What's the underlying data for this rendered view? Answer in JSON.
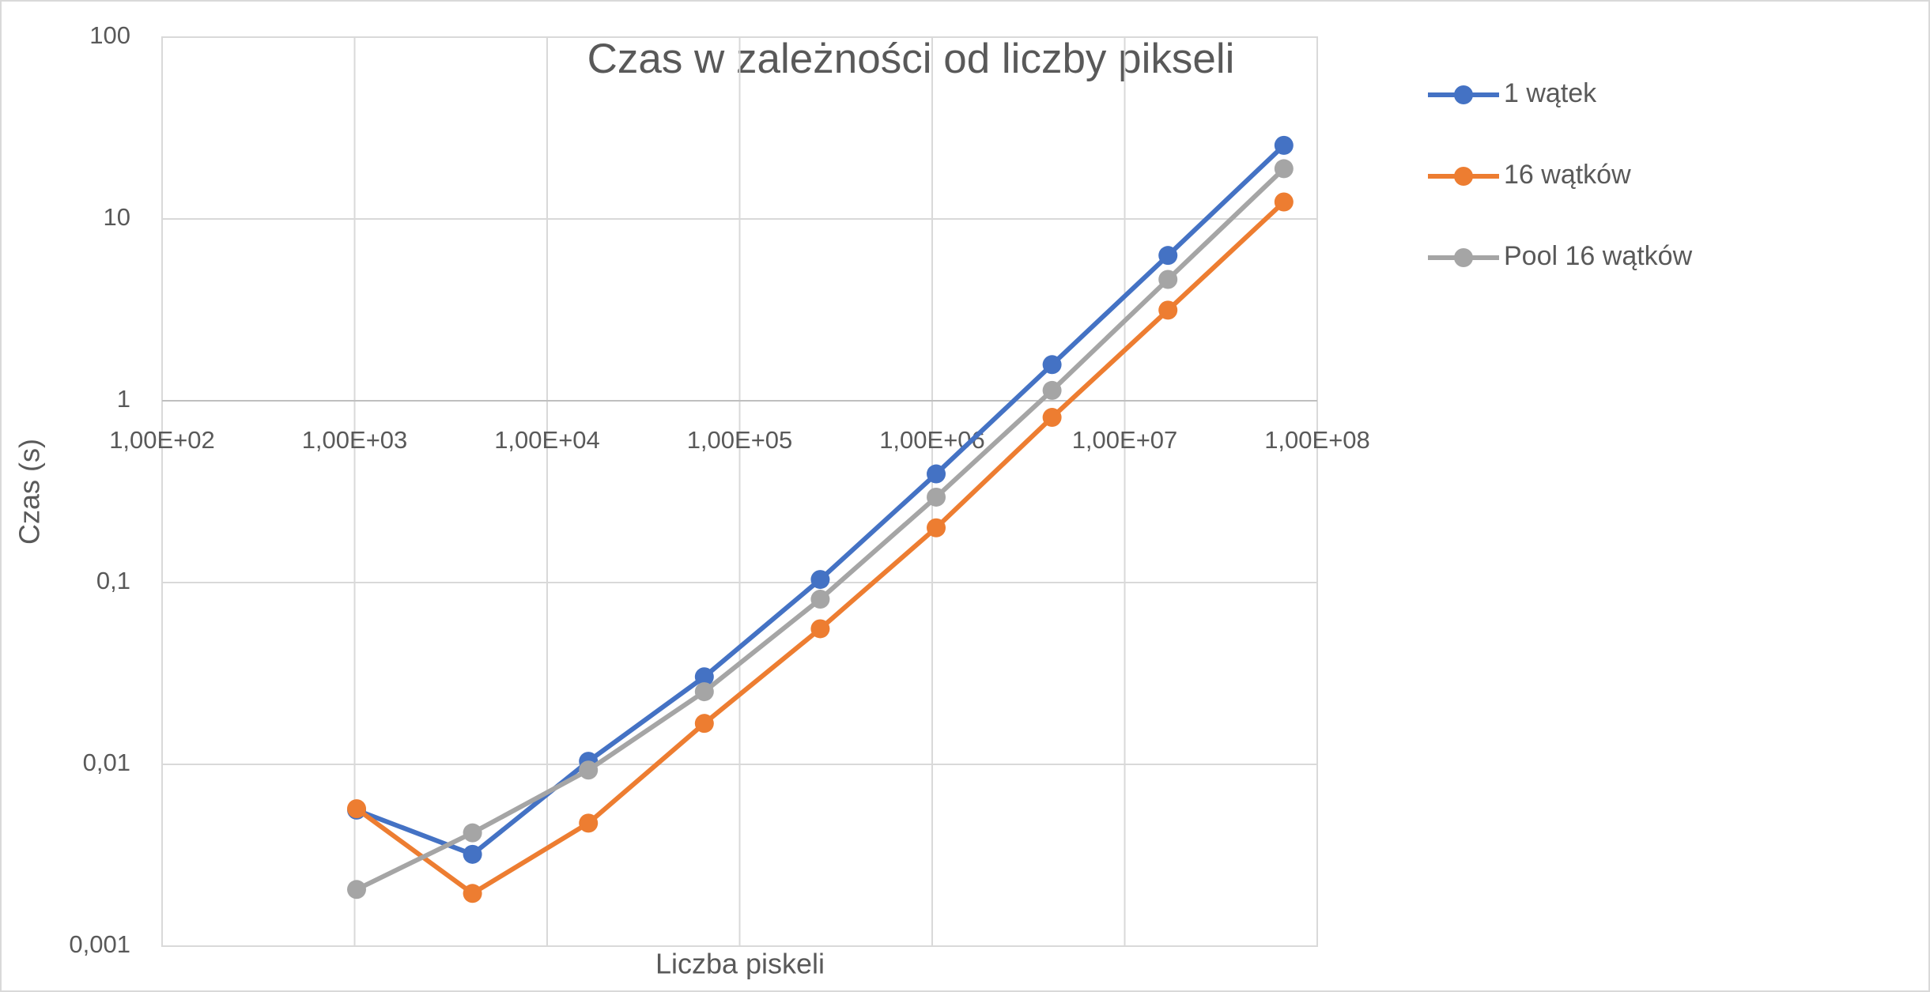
{
  "chart_data": {
    "type": "line",
    "title": "Czas w zależności od liczby pikseli",
    "x_label": "Liczba piskeli",
    "y_label": "Czas (s)",
    "x": [
      1024,
      4096,
      16384,
      65536,
      262144,
      1048576,
      4194304,
      16777216,
      67108864
    ],
    "series": [
      {
        "name": "1 wątek",
        "color": "#4472c4",
        "values": [
          0.0056,
          0.0032,
          0.0104,
          0.0303,
          0.104,
          0.396,
          1.58,
          6.3,
          25.4
        ]
      },
      {
        "name": "16 wątków",
        "color": "#ed7d31",
        "values": [
          0.0057,
          0.00195,
          0.00475,
          0.0168,
          0.0557,
          0.2,
          0.81,
          3.15,
          12.4
        ]
      },
      {
        "name": "Pool 16 wątków",
        "color": "#a5a5a5",
        "values": [
          0.00205,
          0.0042,
          0.0093,
          0.0251,
          0.081,
          0.295,
          1.14,
          4.65,
          18.9
        ]
      }
    ],
    "xlim": [
      100,
      100000000
    ],
    "ylim": [
      0.001,
      100
    ],
    "xticks": [
      {
        "value": 100,
        "label": "1,00E+02"
      },
      {
        "value": 1000,
        "label": "1,00E+03"
      },
      {
        "value": 10000,
        "label": "1,00E+04"
      },
      {
        "value": 100000,
        "label": "1,00E+05"
      },
      {
        "value": 1000000,
        "label": "1,00E+06"
      },
      {
        "value": 10000000,
        "label": "1,00E+07"
      },
      {
        "value": 100000000,
        "label": "1,00E+08"
      }
    ],
    "yticks": [
      {
        "value": 0.001,
        "label": "0,001"
      },
      {
        "value": 0.01,
        "label": "0,01"
      },
      {
        "value": 0.1,
        "label": "0,1"
      },
      1,
      10,
      100
    ],
    "x_log": true,
    "y_log": true,
    "grid": true,
    "legend": "right"
  }
}
